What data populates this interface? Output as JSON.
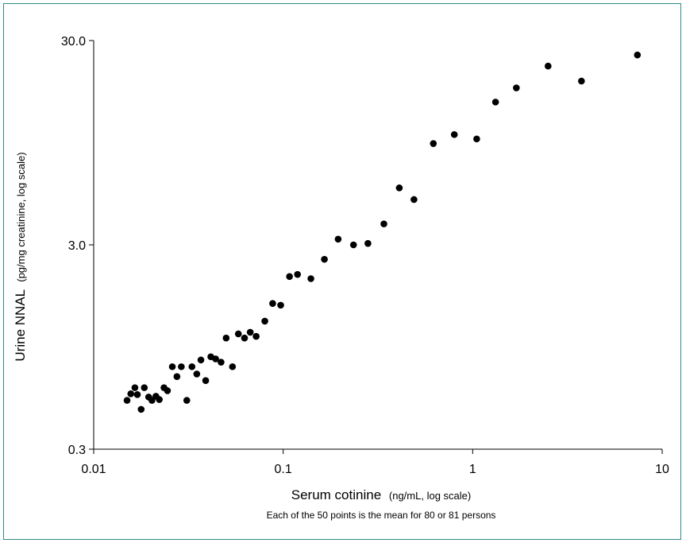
{
  "chart_data": {
    "type": "scatter",
    "x_scale": "log",
    "y_scale": "log",
    "xlim": [
      0.01,
      10
    ],
    "ylim": [
      0.3,
      30
    ],
    "x_ticks": [
      0.01,
      0.1,
      1,
      10
    ],
    "x_tick_labels": [
      "0.01",
      "0.1",
      "1",
      "10"
    ],
    "y_ticks": [
      0.3,
      3,
      30
    ],
    "y_tick_labels": [
      "0.3",
      "3.0",
      "30.0"
    ],
    "xlabel": "Serum cotinine",
    "xlabel_unit": "(ng/mL, log scale)",
    "ylabel": "Urine  NNAL",
    "ylabel_unit": "(pg/mg creatinine, log scale)",
    "note": "Each of the 50 points is the mean for 80 or 81 persons",
    "grid": false,
    "marker_color": "#000000",
    "points": [
      [
        0.015,
        0.52
      ],
      [
        0.0157,
        0.56
      ],
      [
        0.0165,
        0.6
      ],
      [
        0.017,
        0.555
      ],
      [
        0.0178,
        0.47
      ],
      [
        0.0185,
        0.6
      ],
      [
        0.0195,
        0.54
      ],
      [
        0.0203,
        0.52
      ],
      [
        0.0213,
        0.545
      ],
      [
        0.0222,
        0.525
      ],
      [
        0.0235,
        0.6
      ],
      [
        0.0245,
        0.58
      ],
      [
        0.026,
        0.76
      ],
      [
        0.0275,
        0.68
      ],
      [
        0.029,
        0.76
      ],
      [
        0.031,
        0.52
      ],
      [
        0.033,
        0.76
      ],
      [
        0.035,
        0.7
      ],
      [
        0.0368,
        0.82
      ],
      [
        0.039,
        0.65
      ],
      [
        0.0415,
        0.85
      ],
      [
        0.044,
        0.83
      ],
      [
        0.047,
        0.8
      ],
      [
        0.05,
        1.05
      ],
      [
        0.054,
        0.76
      ],
      [
        0.058,
        1.1
      ],
      [
        0.0625,
        1.05
      ],
      [
        0.067,
        1.12
      ],
      [
        0.072,
        1.07
      ],
      [
        0.08,
        1.27
      ],
      [
        0.088,
        1.55
      ],
      [
        0.097,
        1.52
      ],
      [
        0.108,
        2.1
      ],
      [
        0.119,
        2.15
      ],
      [
        0.14,
        2.05
      ],
      [
        0.165,
        2.55
      ],
      [
        0.195,
        3.2
      ],
      [
        0.235,
        3.0
      ],
      [
        0.28,
        3.05
      ],
      [
        0.34,
        3.8
      ],
      [
        0.41,
        5.7
      ],
      [
        0.49,
        5.0
      ],
      [
        0.62,
        9.4
      ],
      [
        0.8,
        10.4
      ],
      [
        1.05,
        9.9
      ],
      [
        1.32,
        15.0
      ],
      [
        1.7,
        17.6
      ],
      [
        2.5,
        22.5
      ],
      [
        3.75,
        19.0
      ],
      [
        7.4,
        25.5
      ]
    ]
  }
}
